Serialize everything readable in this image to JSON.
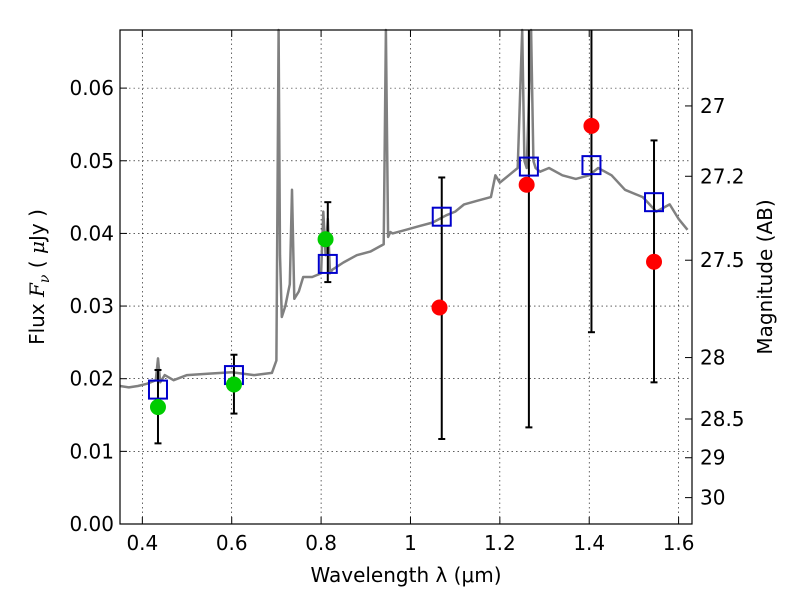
{
  "chart_data": {
    "type": "scatter",
    "xlabel": "Wavelength  λ (μm)",
    "ylabel": "Flux  F_ν  ( μJy )",
    "ylabel_parts": {
      "prefix": "Flux  ",
      "symbol": "F",
      "subscript": "ν",
      "open": "  ( ",
      "mu": "μ",
      "unit": "Jy )"
    },
    "y2label": "Magnitude (AB)",
    "xlim": [
      0.35,
      1.63
    ],
    "ylim": [
      0.0,
      0.068
    ],
    "grid": true,
    "grid_style": "dotted",
    "x_ticks": [
      {
        "value": 0.4,
        "label": "0.4"
      },
      {
        "value": 0.6,
        "label": "0.6"
      },
      {
        "value": 0.8,
        "label": "0.8"
      },
      {
        "value": 1.0,
        "label": "1"
      },
      {
        "value": 1.2,
        "label": "1.2"
      },
      {
        "value": 1.4,
        "label": "1.4"
      },
      {
        "value": 1.6,
        "label": "1.6"
      }
    ],
    "y_ticks": [
      {
        "value": 0.0,
        "label": "0.00"
      },
      {
        "value": 0.01,
        "label": "0.01"
      },
      {
        "value": 0.02,
        "label": "0.02"
      },
      {
        "value": 0.03,
        "label": "0.03"
      },
      {
        "value": 0.04,
        "label": "0.04"
      },
      {
        "value": 0.05,
        "label": "0.05"
      },
      {
        "value": 0.06,
        "label": "0.06"
      }
    ],
    "y2_ticks": [
      {
        "value": 27.0,
        "label": "27"
      },
      {
        "value": 27.2,
        "label": "27.2"
      },
      {
        "value": 27.5,
        "label": "27.5"
      },
      {
        "value": 28.0,
        "label": "28"
      },
      {
        "value": 28.5,
        "label": "28.5"
      },
      {
        "value": 29.0,
        "label": "29"
      },
      {
        "value": 30.0,
        "label": "30"
      }
    ],
    "spectrum": {
      "color": "#808080",
      "x": [
        0.35,
        0.37,
        0.39,
        0.41,
        0.43,
        0.435,
        0.44,
        0.45,
        0.47,
        0.5,
        0.55,
        0.6,
        0.65,
        0.69,
        0.7,
        0.705,
        0.708,
        0.712,
        0.72,
        0.73,
        0.735,
        0.74,
        0.75,
        0.76,
        0.78,
        0.8,
        0.805,
        0.81,
        0.815,
        0.82,
        0.825,
        0.83,
        0.85,
        0.88,
        0.91,
        0.94,
        0.945,
        0.95,
        0.955,
        0.96,
        0.99,
        1.02,
        1.05,
        1.08,
        1.1,
        1.12,
        1.15,
        1.18,
        1.19,
        1.2,
        1.22,
        1.24,
        1.25,
        1.255,
        1.26,
        1.27,
        1.275,
        1.28,
        1.29,
        1.31,
        1.34,
        1.37,
        1.4,
        1.42,
        1.45,
        1.48,
        1.5,
        1.52,
        1.55,
        1.58,
        1.6,
        1.62
      ],
      "y": [
        0.019,
        0.0188,
        0.019,
        0.0193,
        0.0198,
        0.0228,
        0.0195,
        0.0205,
        0.0198,
        0.0205,
        0.0207,
        0.0209,
        0.0205,
        0.0208,
        0.0225,
        0.07,
        0.037,
        0.0285,
        0.03,
        0.033,
        0.046,
        0.031,
        0.032,
        0.034,
        0.034,
        0.0345,
        0.043,
        0.037,
        0.042,
        0.0345,
        0.035,
        0.0352,
        0.036,
        0.037,
        0.0375,
        0.0385,
        0.07,
        0.0395,
        0.0402,
        0.04,
        0.0405,
        0.041,
        0.0415,
        0.0425,
        0.043,
        0.044,
        0.0445,
        0.045,
        0.048,
        0.047,
        0.048,
        0.049,
        0.07,
        0.05,
        0.049,
        0.07,
        0.05,
        0.049,
        0.0485,
        0.049,
        0.048,
        0.0475,
        0.048,
        0.049,
        0.048,
        0.046,
        0.0455,
        0.045,
        0.043,
        0.044,
        0.042,
        0.0405
      ]
    },
    "model_points": {
      "color": "#0000cc",
      "x": [
        0.435,
        0.605,
        0.815,
        1.07,
        1.265,
        1.405,
        1.545
      ],
      "y": [
        0.0185,
        0.0205,
        0.0358,
        0.0423,
        0.0492,
        0.0494,
        0.0443
      ]
    },
    "green_points": {
      "color": "#00cc00",
      "x": [
        0.435,
        0.605,
        0.81
      ],
      "y": [
        0.0161,
        0.0192,
        0.0392
      ]
    },
    "red_points": {
      "color": "#ff0000",
      "x": [
        1.065,
        1.26,
        1.405,
        1.545
      ],
      "y": [
        0.0298,
        0.0467,
        0.0548,
        0.0361
      ]
    },
    "error_bars": {
      "color": "#000000",
      "x": [
        0.435,
        0.605,
        0.815,
        1.07,
        1.265,
        1.405,
        1.545
      ],
      "low": [
        0.0111,
        0.0152,
        0.0333,
        0.0117,
        0.0133,
        0.0264,
        0.0195
      ],
      "high": [
        0.0212,
        0.0233,
        0.0443,
        0.0477,
        0.07,
        0.07,
        0.0528
      ]
    }
  }
}
